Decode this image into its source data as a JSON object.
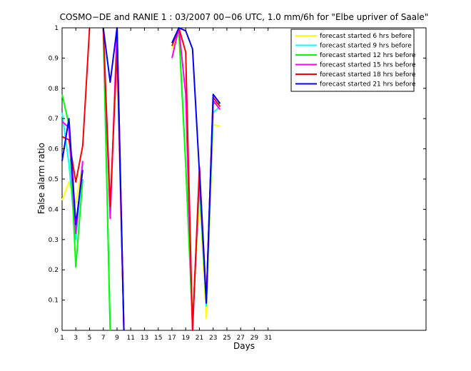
{
  "chart_data": {
    "type": "line",
    "title": "COSMO−DE and RANIE 1 : 03/2007 00−06 UTC, 1.0 mm/6h for \"Elbe upriver of Saale\"",
    "xlabel": "Days",
    "ylabel": "False alarm ratio",
    "xlim": [
      1,
      54
    ],
    "ylim": [
      0,
      1
    ],
    "xticks": [
      1,
      3,
      5,
      7,
      9,
      11,
      13,
      15,
      17,
      19,
      21,
      23,
      25,
      27,
      29,
      31
    ],
    "yticks": [
      0,
      0.1,
      0.2,
      0.3,
      0.4,
      0.5,
      0.6,
      0.7,
      0.8,
      0.9,
      1
    ],
    "ytick_labels": [
      "0",
      "0.1",
      "0.2",
      "0.3",
      "0.4",
      "0.5",
      "0.6",
      "0.7",
      "0.8",
      "0.9",
      "1"
    ],
    "grid": false,
    "legend_position": "top-right",
    "series": [
      {
        "name": "forecast started 6 hrs before",
        "color": "#ffff00",
        "values": [
          0.43,
          0.49,
          0.42,
          0.55,
          null,
          null,
          1.0,
          0.0,
          null,
          null,
          null,
          null,
          null,
          null,
          null,
          null,
          0.93,
          0.98,
          0.55,
          0.02,
          0.45,
          0.04,
          0.68,
          0.675,
          null,
          null,
          null,
          null,
          null,
          null,
          null
        ]
      },
      {
        "name": "forecast started 9 hrs before",
        "color": "#00ffff",
        "values": [
          0.72,
          0.55,
          0.3,
          0.55,
          null,
          null,
          1.0,
          0.0,
          null,
          null,
          null,
          null,
          null,
          null,
          null,
          null,
          0.94,
          1.0,
          0.55,
          0.02,
          0.48,
          0.08,
          0.72,
          0.74,
          null,
          null,
          null,
          null,
          null,
          null,
          null
        ]
      },
      {
        "name": "forecast started 12 hrs before",
        "color": "#00ff00",
        "values": [
          0.78,
          0.68,
          0.21,
          0.5,
          null,
          null,
          1.0,
          0.0,
          null,
          null,
          null,
          null,
          null,
          null,
          null,
          null,
          0.95,
          0.99,
          0.55,
          0.02,
          0.5,
          0.09,
          0.75,
          0.75,
          null,
          null,
          null,
          null,
          null,
          null,
          null
        ]
      },
      {
        "name": "forecast started 15 hrs before",
        "color": "#ff00ff",
        "values": [
          0.69,
          0.67,
          0.32,
          0.56,
          null,
          null,
          1.0,
          0.37,
          1.0,
          0.0,
          null,
          null,
          null,
          null,
          null,
          null,
          0.9,
          1.0,
          0.78,
          0.0,
          0.52,
          0.1,
          0.76,
          0.73,
          null,
          null,
          null,
          null,
          null,
          null,
          null
        ]
      },
      {
        "name": "forecast started 18 hrs before",
        "color": "#ff0000",
        "values": [
          0.64,
          0.63,
          0.49,
          0.61,
          1.0,
          null,
          1.0,
          0.41,
          0.93,
          0.0,
          null,
          null,
          null,
          null,
          null,
          null,
          0.94,
          1.0,
          0.92,
          0.0,
          0.54,
          0.1,
          0.77,
          0.74,
          null,
          null,
          null,
          null,
          null,
          null,
          null
        ]
      },
      {
        "name": "forecast started 21 hrs before",
        "color": "#0000ff",
        "values": [
          0.56,
          0.7,
          0.35,
          0.53,
          null,
          null,
          1.0,
          0.82,
          1.0,
          0.0,
          null,
          null,
          null,
          null,
          null,
          null,
          0.95,
          1.0,
          0.99,
          0.93,
          0.52,
          0.09,
          0.78,
          0.75,
          null,
          null,
          null,
          null,
          null,
          null,
          null
        ]
      }
    ]
  }
}
